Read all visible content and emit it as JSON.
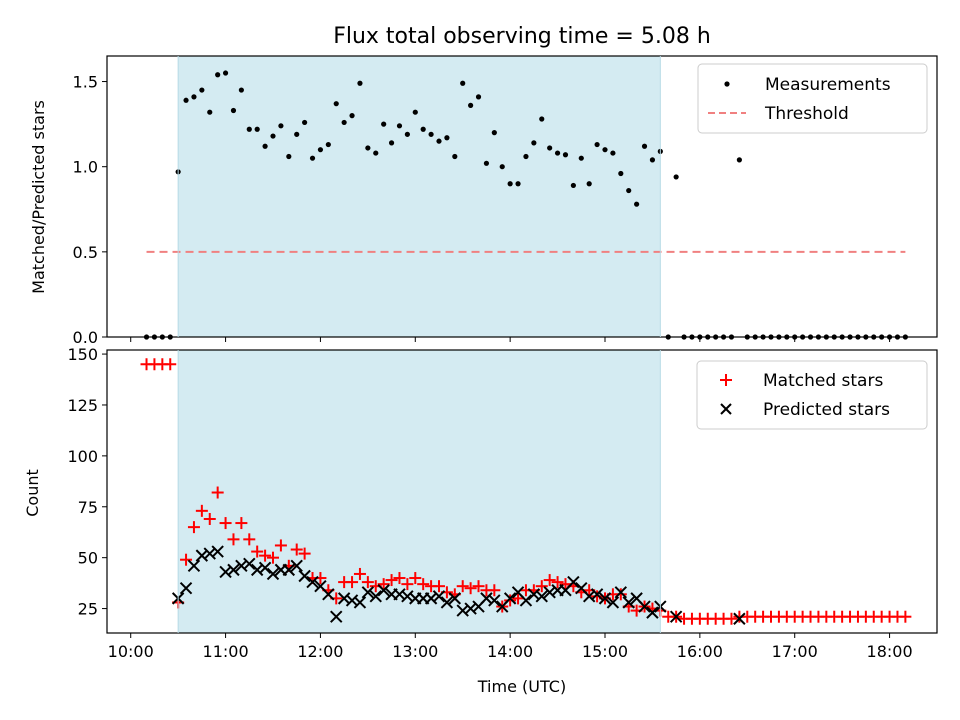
{
  "chart_data": [
    {
      "type": "scatter",
      "title": "Flux total observing time = 5.08 h",
      "xlabel": "",
      "ylabel": "Matched/Predicted stars",
      "xlim": [
        "09:45",
        "18:30"
      ],
      "ylim": [
        0,
        1.65
      ],
      "x_ticks": [
        "10:00",
        "11:00",
        "12:00",
        "13:00",
        "14:00",
        "15:00",
        "16:00",
        "17:00",
        "18:00"
      ],
      "x_tick_labels_visible": false,
      "y_ticks": [
        "0.0",
        "0.5",
        "1.0",
        "1.5"
      ],
      "shaded_region": {
        "start": "10:30",
        "end": "15:35",
        "color": "#d4ebf2"
      },
      "legend": {
        "placement": "top-right",
        "entries": [
          "Measurements",
          "Threshold"
        ]
      },
      "series": [
        {
          "name": "Threshold",
          "style": "dashed-line",
          "color": "#f08080",
          "x": [
            "10:10",
            "18:10"
          ],
          "y": [
            0.5,
            0.5
          ]
        },
        {
          "name": "Measurements",
          "style": "dot",
          "color": "#000000",
          "x": [
            "10:10",
            "10:15",
            "10:20",
            "10:25",
            "10:30",
            "10:35",
            "10:40",
            "10:45",
            "10:50",
            "10:55",
            "11:00",
            "11:05",
            "11:10",
            "11:15",
            "11:20",
            "11:25",
            "11:30",
            "11:35",
            "11:40",
            "11:45",
            "11:50",
            "11:55",
            "12:00",
            "12:05",
            "12:10",
            "12:15",
            "12:20",
            "12:25",
            "12:30",
            "12:35",
            "12:40",
            "12:45",
            "12:50",
            "12:55",
            "13:00",
            "13:05",
            "13:10",
            "13:15",
            "13:20",
            "13:25",
            "13:30",
            "13:35",
            "13:40",
            "13:45",
            "13:50",
            "13:55",
            "14:00",
            "14:05",
            "14:10",
            "14:15",
            "14:20",
            "14:25",
            "14:30",
            "14:35",
            "14:40",
            "14:45",
            "14:50",
            "14:55",
            "15:00",
            "15:05",
            "15:10",
            "15:15",
            "15:20",
            "15:25",
            "15:30",
            "15:35",
            "15:40",
            "15:45",
            "15:50",
            "15:55",
            "16:00",
            "16:05",
            "16:10",
            "16:15",
            "16:20",
            "16:25",
            "16:30",
            "16:35",
            "16:40",
            "16:45",
            "16:50",
            "16:55",
            "17:00",
            "17:05",
            "17:10",
            "17:15",
            "17:20",
            "17:25",
            "17:30",
            "17:35",
            "17:40",
            "17:45",
            "17:50",
            "17:55",
            "18:00",
            "18:05",
            "18:10"
          ],
          "y": [
            0,
            0,
            0,
            0,
            0.97,
            1.39,
            1.41,
            1.45,
            1.32,
            1.54,
            1.55,
            1.33,
            1.45,
            1.22,
            1.22,
            1.12,
            1.18,
            1.24,
            1.06,
            1.19,
            1.26,
            1.05,
            1.1,
            1.13,
            1.37,
            1.26,
            1.3,
            1.49,
            1.11,
            1.08,
            1.25,
            1.14,
            1.24,
            1.19,
            1.32,
            1.22,
            1.19,
            1.15,
            1.17,
            1.06,
            1.49,
            1.36,
            1.41,
            1.02,
            1.2,
            1.0,
            0.9,
            0.9,
            1.06,
            1.14,
            1.28,
            1.11,
            1.08,
            1.07,
            0.89,
            1.05,
            0.9,
            1.13,
            1.1,
            1.08,
            0.96,
            0.86,
            0.78,
            1.12,
            1.04,
            1.09,
            0,
            0.94,
            0,
            0,
            0,
            0,
            0,
            0,
            0,
            1.04,
            0,
            0,
            0,
            0,
            0,
            0,
            0,
            0,
            0,
            0,
            0,
            0,
            0,
            0,
            0,
            0,
            0,
            0,
            0,
            0,
            0
          ]
        }
      ]
    },
    {
      "type": "scatter",
      "title": "",
      "xlabel": "Time (UTC)",
      "ylabel": "Count",
      "xlim": [
        "09:45",
        "18:30"
      ],
      "ylim": [
        13,
        152
      ],
      "x_ticks": [
        "10:00",
        "11:00",
        "12:00",
        "13:00",
        "14:00",
        "15:00",
        "16:00",
        "17:00",
        "18:00"
      ],
      "y_ticks": [
        "25",
        "50",
        "75",
        "100",
        "125",
        "150"
      ],
      "shaded_region": {
        "start": "10:30",
        "end": "15:35",
        "color": "#d4ebf2"
      },
      "legend": {
        "placement": "top-right",
        "entries": [
          "Matched stars",
          "Predicted stars"
        ]
      },
      "series": [
        {
          "name": "Matched stars",
          "style": "plus",
          "color": "#ff0000",
          "x": [
            "10:10",
            "10:15",
            "10:20",
            "10:25",
            "10:30",
            "10:35",
            "10:40",
            "10:45",
            "10:50",
            "10:55",
            "11:00",
            "11:05",
            "11:10",
            "11:15",
            "11:20",
            "11:25",
            "11:30",
            "11:35",
            "11:40",
            "11:45",
            "11:50",
            "11:55",
            "12:00",
            "12:05",
            "12:10",
            "12:15",
            "12:20",
            "12:25",
            "12:30",
            "12:35",
            "12:40",
            "12:45",
            "12:50",
            "12:55",
            "13:00",
            "13:05",
            "13:10",
            "13:15",
            "13:20",
            "13:25",
            "13:30",
            "13:35",
            "13:40",
            "13:45",
            "13:50",
            "13:55",
            "14:00",
            "14:05",
            "14:10",
            "14:15",
            "14:20",
            "14:25",
            "14:30",
            "14:35",
            "14:40",
            "14:45",
            "14:50",
            "14:55",
            "15:00",
            "15:05",
            "15:10",
            "15:15",
            "15:20",
            "15:25",
            "15:30",
            "15:35",
            "15:40",
            "15:45",
            "15:50",
            "15:55",
            "16:00",
            "16:05",
            "16:10",
            "16:15",
            "16:20",
            "16:25",
            "16:30",
            "16:35",
            "16:40",
            "16:45",
            "16:50",
            "16:55",
            "17:00",
            "17:05",
            "17:10",
            "17:15",
            "17:20",
            "17:25",
            "17:30",
            "17:35",
            "17:40",
            "17:45",
            "17:50",
            "17:55",
            "18:00",
            "18:05",
            "18:10"
          ],
          "y": [
            145,
            145,
            145,
            145,
            28,
            49,
            65,
            73,
            69,
            82,
            67,
            59,
            67,
            59,
            53,
            51,
            50,
            56,
            46,
            54,
            52,
            40,
            40,
            34,
            30,
            38,
            38,
            42,
            38,
            36,
            37,
            39,
            40,
            37,
            40,
            37,
            36,
            36,
            33,
            32,
            36,
            35,
            36,
            34,
            34,
            26,
            29,
            30,
            34,
            34,
            36,
            39,
            38,
            37,
            36,
            33,
            34,
            31,
            30,
            32,
            32,
            26,
            24,
            26,
            25,
            24,
            21,
            21,
            20,
            20,
            20,
            20,
            20,
            20,
            20,
            21,
            21,
            21,
            21,
            21,
            21,
            21,
            21,
            21,
            21,
            21,
            21,
            21,
            21,
            21,
            21,
            21,
            21,
            21,
            21,
            21,
            21
          ]
        },
        {
          "name": "Predicted stars",
          "style": "x",
          "color": "#000000",
          "x": [
            "10:30",
            "10:35",
            "10:40",
            "10:45",
            "10:50",
            "10:55",
            "11:00",
            "11:05",
            "11:10",
            "11:15",
            "11:20",
            "11:25",
            "11:30",
            "11:35",
            "11:40",
            "11:45",
            "11:50",
            "11:55",
            "12:00",
            "12:05",
            "12:10",
            "12:15",
            "12:20",
            "12:25",
            "12:30",
            "12:35",
            "12:40",
            "12:45",
            "12:50",
            "12:55",
            "13:00",
            "13:05",
            "13:10",
            "13:15",
            "13:20",
            "13:25",
            "13:30",
            "13:35",
            "13:40",
            "13:45",
            "13:50",
            "13:55",
            "14:00",
            "14:05",
            "14:10",
            "14:15",
            "14:20",
            "14:25",
            "14:30",
            "14:35",
            "14:40",
            "14:45",
            "14:50",
            "14:55",
            "15:00",
            "15:05",
            "15:10",
            "15:15",
            "15:20",
            "15:25",
            "15:30",
            "15:35",
            "15:45",
            "16:25"
          ],
          "y": [
            30,
            35,
            46,
            51,
            52,
            53,
            43,
            44,
            46,
            47,
            44,
            45,
            42,
            44,
            44,
            46,
            41,
            38,
            36,
            32,
            21,
            30,
            29,
            28,
            33,
            31,
            34,
            32,
            32,
            31,
            30,
            30,
            30,
            31,
            28,
            30,
            24,
            25,
            26,
            30,
            29,
            26,
            30,
            33,
            29,
            32,
            31,
            33,
            34,
            34,
            38,
            35,
            31,
            32,
            30,
            28,
            33,
            28,
            30,
            26,
            23,
            26,
            21,
            20
          ]
        }
      ]
    }
  ]
}
